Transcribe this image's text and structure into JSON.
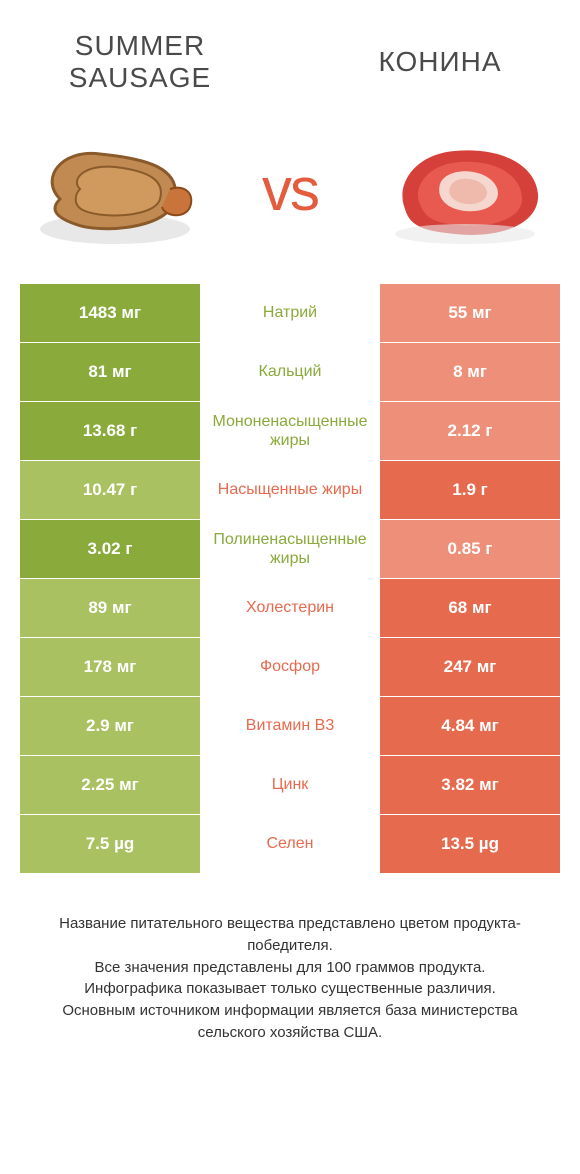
{
  "colors": {
    "green_dark": "#8aaa3b",
    "green_light": "#a9c160",
    "red_dark": "#e66a4e",
    "red_light": "#ee9079",
    "vs": "#e35c3e",
    "text": "#4a4a4a"
  },
  "left_title": "Summer sausage",
  "right_title": "Конина",
  "vs_label": "vs",
  "rows": [
    {
      "nutrient": "Натрий",
      "left": "1483 мг",
      "right": "55 мг",
      "winner": "left"
    },
    {
      "nutrient": "Кальций",
      "left": "81 мг",
      "right": "8 мг",
      "winner": "left"
    },
    {
      "nutrient": "Мононенасыщенные жиры",
      "left": "13.68 г",
      "right": "2.12 г",
      "winner": "left"
    },
    {
      "nutrient": "Насыщенные жиры",
      "left": "10.47 г",
      "right": "1.9 г",
      "winner": "right"
    },
    {
      "nutrient": "Полиненасыщенные жиры",
      "left": "3.02 г",
      "right": "0.85 г",
      "winner": "left"
    },
    {
      "nutrient": "Холестерин",
      "left": "89 мг",
      "right": "68 мг",
      "winner": "right"
    },
    {
      "nutrient": "Фосфор",
      "left": "178 мг",
      "right": "247 мг",
      "winner": "right"
    },
    {
      "nutrient": "Витамин B3",
      "left": "2.9 мг",
      "right": "4.84 мг",
      "winner": "right"
    },
    {
      "nutrient": "Цинк",
      "left": "2.25 мг",
      "right": "3.82 мг",
      "winner": "right"
    },
    {
      "nutrient": "Селен",
      "left": "7.5 µg",
      "right": "13.5 µg",
      "winner": "right"
    }
  ],
  "footer_lines": [
    "Название питательного вещества представлено цветом продукта-победителя.",
    "Все значения представлены для 100 граммов продукта.",
    "Инфографика показывает только существенные различия.",
    "Основным источником информации является база министерства сельского хозяйства США."
  ]
}
